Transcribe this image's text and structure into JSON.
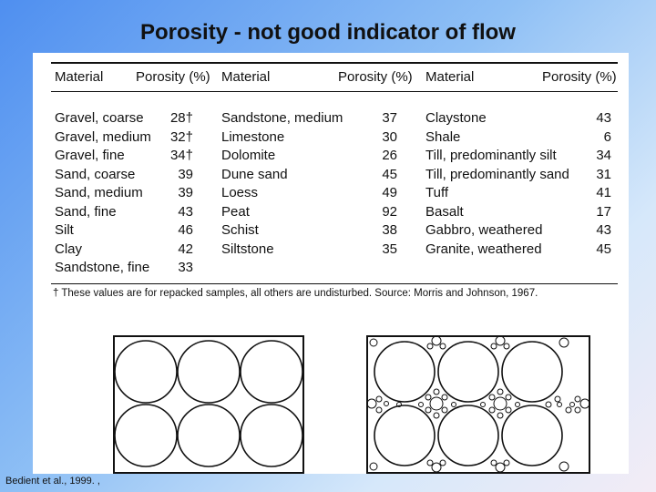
{
  "title": "Porosity - not good indicator of flow",
  "table": {
    "headers": {
      "material": "Material",
      "porosity": "Porosity (%)"
    },
    "columns": [
      [
        {
          "material": "Gravel, coarse",
          "porosity": "28†"
        },
        {
          "material": "Gravel, medium",
          "porosity": "32†"
        },
        {
          "material": "Gravel, fine",
          "porosity": "34†"
        },
        {
          "material": "Sand, coarse",
          "porosity": "39"
        },
        {
          "material": "Sand, medium",
          "porosity": "39"
        },
        {
          "material": "Sand, fine",
          "porosity": "43"
        },
        {
          "material": "Silt",
          "porosity": "46"
        },
        {
          "material": "Clay",
          "porosity": "42"
        },
        {
          "material": "Sandstone, fine",
          "porosity": "33"
        }
      ],
      [
        {
          "material": "Sandstone, medium",
          "porosity": "37"
        },
        {
          "material": "Limestone",
          "porosity": "30"
        },
        {
          "material": "Dolomite",
          "porosity": "26"
        },
        {
          "material": "Dune sand",
          "porosity": "45"
        },
        {
          "material": "Loess",
          "porosity": "49"
        },
        {
          "material": "Peat",
          "porosity": "92"
        },
        {
          "material": "Schist",
          "porosity": "38"
        },
        {
          "material": "Siltstone",
          "porosity": "35"
        }
      ],
      [
        {
          "material": "Claystone",
          "porosity": "43"
        },
        {
          "material": "Shale",
          "porosity": "6"
        },
        {
          "material": "Till, predominantly silt",
          "porosity": "34"
        },
        {
          "material": "Till, predominantly sand",
          "porosity": "31"
        },
        {
          "material": "Tuff",
          "porosity": "41"
        },
        {
          "material": "Basalt",
          "porosity": "17"
        },
        {
          "material": "Gabbro, weathered",
          "porosity": "43"
        },
        {
          "material": "Granite, weathered",
          "porosity": "45"
        }
      ]
    ],
    "footnote": "† These values are for repacked samples, all others are undisturbed. Source: Morris and Johnson, 1967."
  },
  "source": "Bedient et al., 1999. ,"
}
